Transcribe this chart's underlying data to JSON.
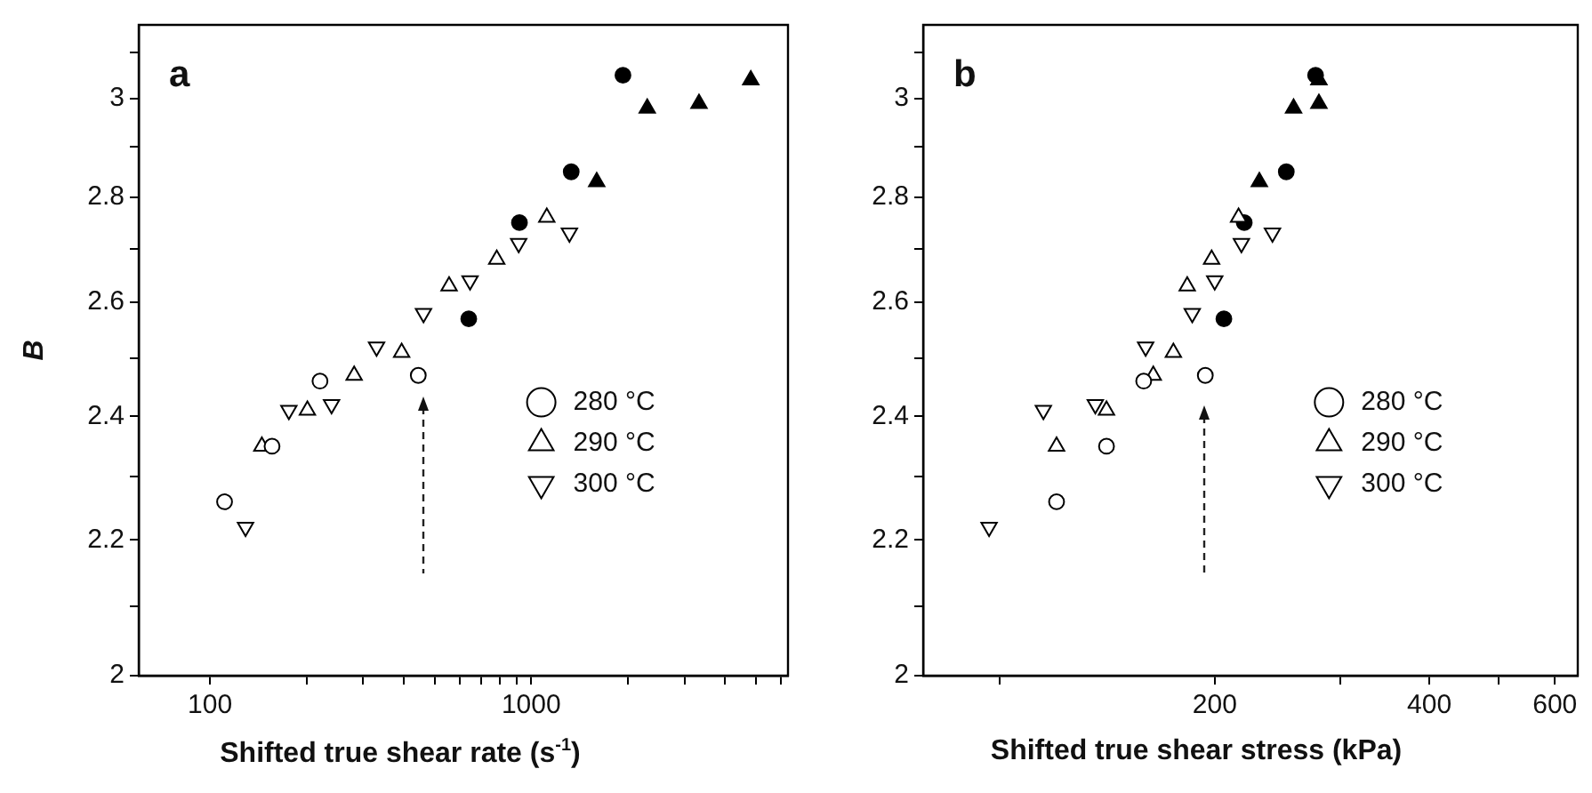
{
  "chart_data": [
    {
      "type": "scatter",
      "title": "a",
      "xlabel": "Shifted true shear rate (s$^{-1}$)",
      "ylabel": "B",
      "log": "xy",
      "grid": false,
      "legend": "right",
      "xlim": [
        60,
        6300
      ],
      "xticks": [
        100,
        1000,
        {
          "value": 200,
          "label": null
        },
        {
          "value": 300,
          "label": null
        },
        {
          "value": 400,
          "label": null
        },
        {
          "value": 500,
          "label": null
        },
        {
          "value": 600,
          "label": null
        },
        {
          "value": 700,
          "label": null
        },
        {
          "value": 800,
          "label": null
        },
        {
          "value": 900,
          "label": null
        },
        {
          "value": 2000,
          "label": null
        },
        {
          "value": 3000,
          "label": null
        },
        {
          "value": 4000,
          "label": null
        },
        {
          "value": 5000,
          "label": null
        },
        {
          "value": 6000,
          "label": null
        }
      ],
      "ylim": [
        2,
        3.16
      ],
      "yticks": [
        2,
        2.2,
        2.4,
        2.6,
        2.8,
        3,
        {
          "value": 2.1,
          "label": null
        },
        {
          "value": 2.3,
          "label": null
        },
        {
          "value": 2.5,
          "label": null
        },
        {
          "value": 2.7,
          "label": null
        },
        {
          "value": 2.9,
          "label": null
        },
        {
          "value": 3.1,
          "label": null
        }
      ],
      "series": [
        {
          "name": "280 °C",
          "color": "#000000",
          "marker": "circle",
          "x": [
            111,
            156,
            220,
            445
          ],
          "values": [
            2.26,
            2.35,
            2.46,
            2.47
          ]
        },
        {
          "name": "290 °C",
          "color": "#000000",
          "marker": "triangle",
          "x": [
            145,
            201,
            281,
            395,
            555,
            781,
            1118
          ],
          "values": [
            2.35,
            2.41,
            2.47,
            2.51,
            2.63,
            2.68,
            2.76
          ]
        },
        {
          "name": "300 °C",
          "color": "#000000",
          "marker": "triangle-down",
          "x": [
            129,
            176,
            239,
            330,
            462,
            645,
            914,
            1315
          ],
          "values": [
            2.22,
            2.41,
            2.42,
            2.52,
            2.58,
            2.64,
            2.71,
            2.73
          ]
        },
        {
          "color": "#000000",
          "marker": "circle",
          "x": [
            639,
            919,
            1332,
            1930
          ],
          "values": [
            2.57,
            2.75,
            2.85,
            3.05
          ]
        },
        {
          "color": "#000000",
          "marker": "triangle",
          "x": [
            1599,
            2297,
            3329,
            4825
          ],
          "values": [
            2.83,
            2.98,
            2.99,
            3.04
          ]
        }
      ]
    },
    {
      "type": "scatter",
      "title": "b",
      "xlabel": "Shifted true shear stress (kPa)",
      "log": "xy",
      "grid": false,
      "legend": "right",
      "xlim": [
        78,
        646
      ],
      "xticks": [
        200,
        400,
        600,
        {
          "value": 100,
          "label": null
        },
        {
          "value": 300,
          "label": null
        },
        {
          "value": 500,
          "label": null
        }
      ],
      "ylim": [
        2,
        3.16
      ],
      "yticks": [
        2,
        2.2,
        2.4,
        2.6,
        2.8,
        3,
        {
          "value": 2.1,
          "label": null
        },
        {
          "value": 2.3,
          "label": null
        },
        {
          "value": 2.5,
          "label": null
        },
        {
          "value": 2.7,
          "label": null
        },
        {
          "value": 2.9,
          "label": null
        },
        {
          "value": 3.1,
          "label": null
        }
      ],
      "series": [
        {
          "name": "280 °C",
          "color": "#000000",
          "marker": "circle",
          "x": [
            120,
            141,
            159,
            194
          ],
          "values": [
            2.26,
            2.35,
            2.46,
            2.47
          ]
        },
        {
          "name": "290 °C",
          "color": "#000000",
          "marker": "triangle",
          "x": [
            120,
            141,
            164,
            175,
            183,
            198,
            216
          ],
          "values": [
            2.35,
            2.41,
            2.47,
            2.51,
            2.63,
            2.68,
            2.76
          ]
        },
        {
          "name": "300 °C",
          "color": "#000000",
          "marker": "triangle-down",
          "x": [
            96.5,
            115,
            136,
            160,
            186,
            200,
            218,
            241
          ],
          "values": [
            2.22,
            2.41,
            2.42,
            2.52,
            2.58,
            2.64,
            2.71,
            2.73
          ]
        },
        {
          "color": "#000000",
          "marker": "circle",
          "x": [
            206,
            220,
            252,
            277
          ],
          "values": [
            2.57,
            2.75,
            2.85,
            3.05
          ]
        },
        {
          "color": "#000000",
          "marker": "triangle",
          "x": [
            231,
            258,
            280,
            280
          ],
          "values": [
            2.83,
            2.98,
            2.99,
            3.04
          ]
        }
      ]
    }
  ]
}
